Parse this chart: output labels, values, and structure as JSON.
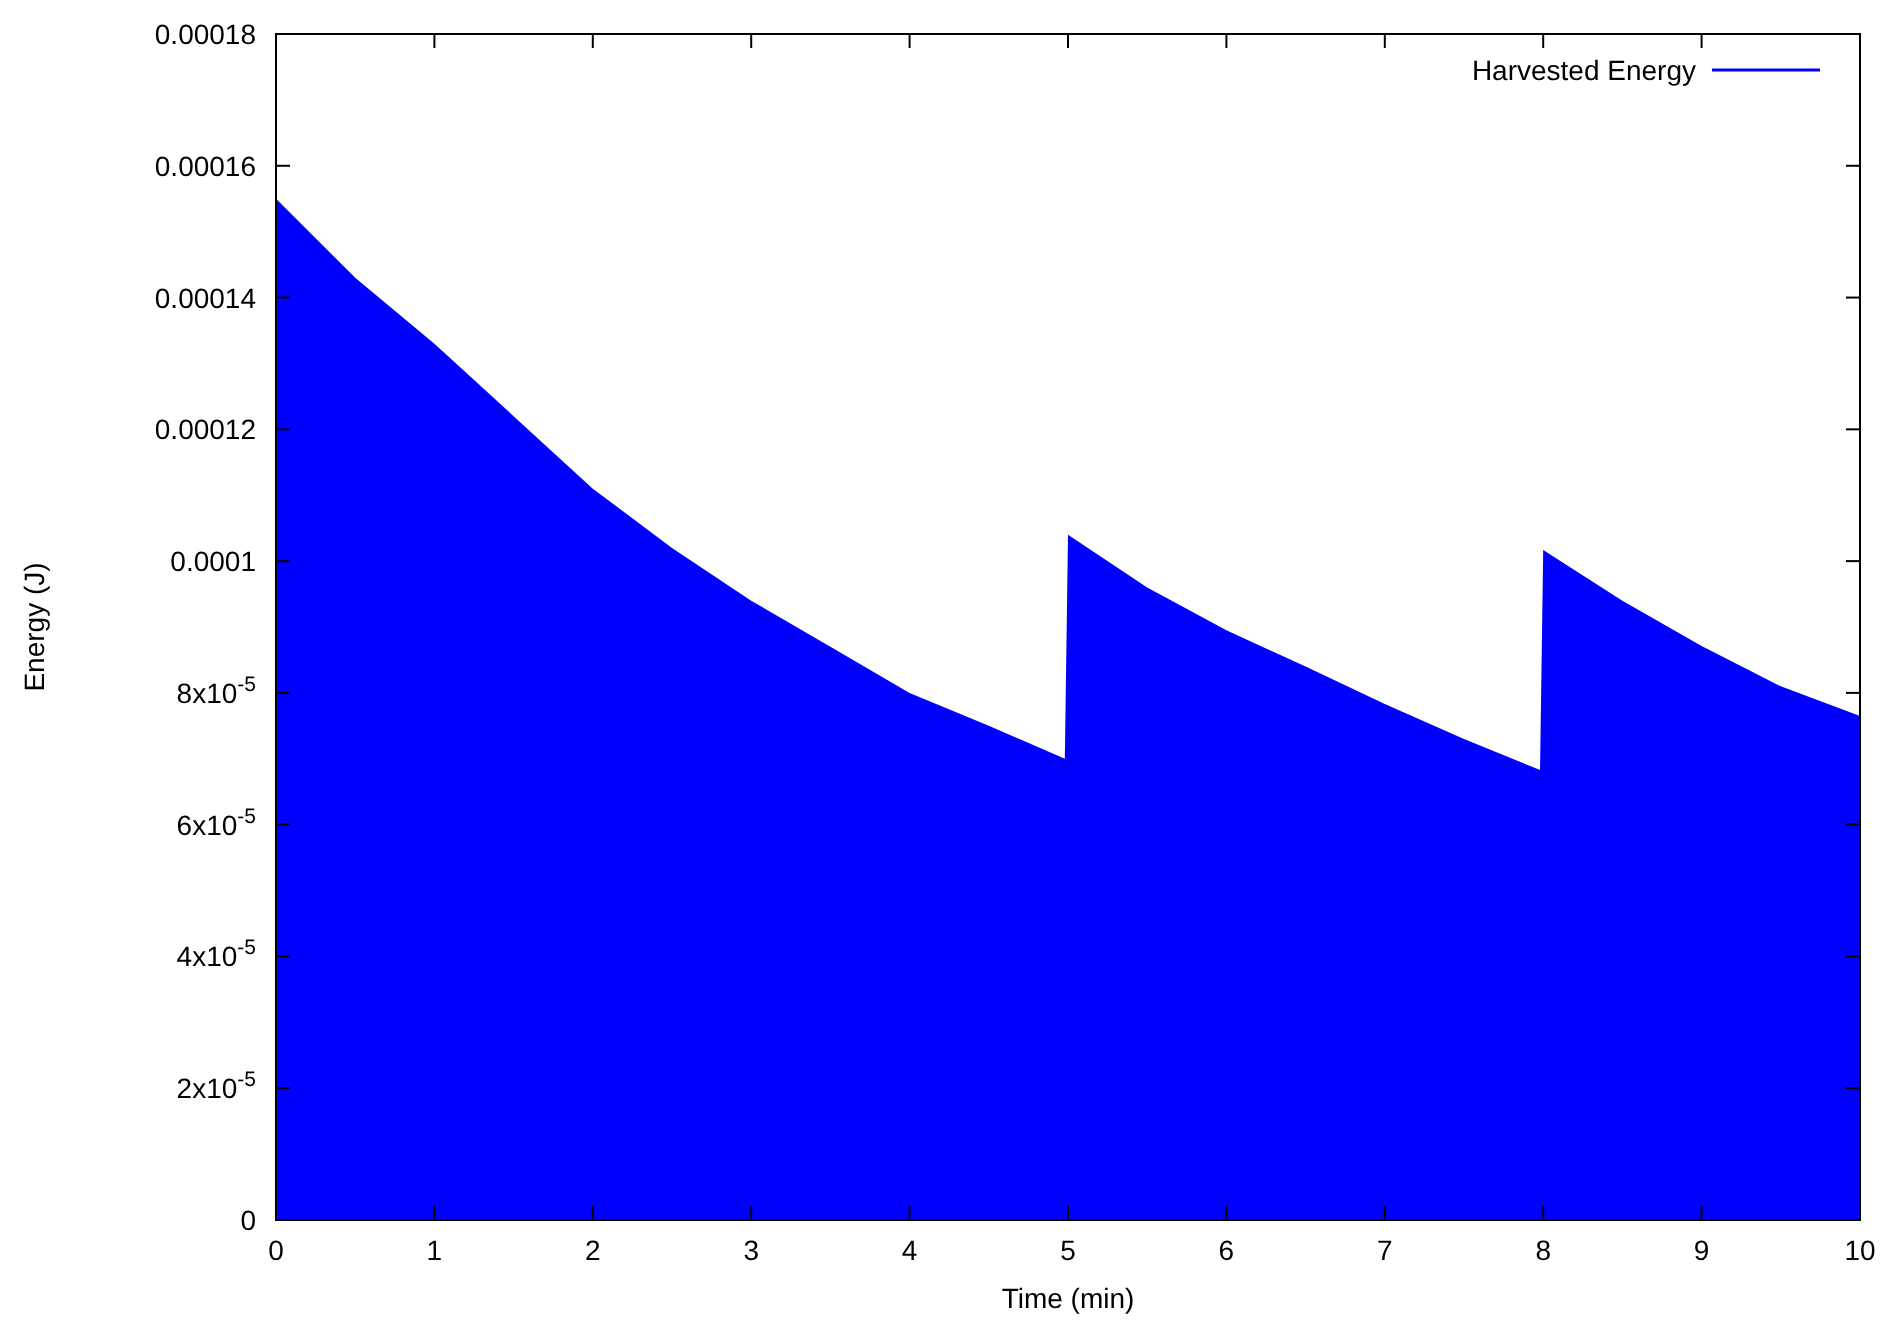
{
  "chart_data": {
    "type": "area",
    "xlabel": "Time  (min)",
    "ylabel": "Energy (J)",
    "xlim": [
      0,
      10
    ],
    "ylim": [
      0,
      0.00018
    ],
    "xticks": [
      0,
      1,
      2,
      3,
      4,
      5,
      6,
      7,
      8,
      9,
      10
    ],
    "yticks": [
      0,
      {
        "value": 2e-05,
        "label": "2x10$^{-5}$"
      },
      {
        "value": 4e-05,
        "label": "4x10$^{-5}$"
      },
      {
        "value": 6e-05,
        "label": "6x10$^{-5}$"
      },
      {
        "value": 8e-05,
        "label": "8x10$^{-5}$"
      },
      0.0001,
      0.00012,
      0.00014,
      0.00016,
      0.00018
    ],
    "legend": "top right",
    "grid": false,
    "series": [
      {
        "name": "Harvested Energy",
        "color": "#0000ff",
        "x": [
          0,
          0.5,
          1,
          1.5,
          2,
          2.5,
          3,
          3.5,
          4,
          4.5,
          4.98,
          5,
          5.5,
          6,
          6.5,
          7,
          7.5,
          7.98,
          8,
          8.5,
          9,
          9.5,
          10
        ],
        "values": [
          0.000155,
          0.000143,
          0.000133,
          0.000122,
          0.000111,
          0.000102,
          9.4e-05,
          8.7e-05,
          8e-05,
          7.5e-05,
          7e-05,
          0.000104,
          9.6e-05,
          8.95e-05,
          8.4e-05,
          7.83e-05,
          7.3e-05,
          6.83e-05,
          0.0001017,
          9.4e-05,
          8.71e-05,
          8.1e-05,
          7.65e-05
        ]
      }
    ]
  }
}
